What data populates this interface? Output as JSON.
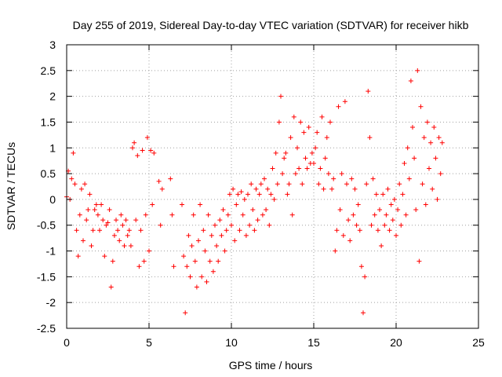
{
  "chart_data": {
    "type": "scatter",
    "title": "Day 255 of 2019, Sidereal Day-to-day VTEC variation (SDTVAR) for receiver hikb",
    "xlabel": "GPS time / hours",
    "ylabel": "SDTVAR / TECUs",
    "xlim": [
      0,
      25
    ],
    "ylim": [
      -2.5,
      3
    ],
    "xticks": [
      0,
      5,
      10,
      15,
      20,
      25
    ],
    "yticks": [
      -2.5,
      -2,
      -1.5,
      -1,
      -0.5,
      0,
      0.5,
      1,
      1.5,
      2,
      2.5,
      3
    ],
    "ytick_labels": [
      "-2.5",
      "-2",
      "-1.5",
      "-1",
      "-0.5",
      "0",
      "0.5",
      "1",
      "1.5",
      "2",
      "2.5",
      "3"
    ],
    "xtick_labels": [
      "0",
      "5",
      "10",
      "15",
      "20",
      "25"
    ],
    "grid": true,
    "marker": "+",
    "color": "#ff0000",
    "series": [
      {
        "name": "SDTVAR",
        "points": [
          [
            0.0,
            0.05
          ],
          [
            0.1,
            0.55
          ],
          [
            0.2,
            0.0
          ],
          [
            0.3,
            0.4
          ],
          [
            0.4,
            0.9
          ],
          [
            0.5,
            0.3
          ],
          [
            0.6,
            -0.6
          ],
          [
            0.7,
            -1.1
          ],
          [
            0.8,
            -0.3
          ],
          [
            0.9,
            0.2
          ],
          [
            1.0,
            -0.8
          ],
          [
            1.1,
            0.3
          ],
          [
            1.2,
            -0.4
          ],
          [
            1.3,
            -0.2
          ],
          [
            1.4,
            0.1
          ],
          [
            1.5,
            -0.9
          ],
          [
            1.6,
            -0.6
          ],
          [
            1.7,
            -0.2
          ],
          [
            1.8,
            -0.1
          ],
          [
            1.9,
            -0.3
          ],
          [
            2.0,
            -0.6
          ],
          [
            2.1,
            -0.1
          ],
          [
            2.2,
            -0.4
          ],
          [
            2.3,
            -1.1
          ],
          [
            2.4,
            -0.5
          ],
          [
            2.5,
            -0.45
          ],
          [
            2.6,
            -0.2
          ],
          [
            2.7,
            -1.7
          ],
          [
            2.8,
            -1.2
          ],
          [
            2.9,
            -0.7
          ],
          [
            3.0,
            -0.4
          ],
          [
            3.1,
            -0.6
          ],
          [
            3.2,
            -0.8
          ],
          [
            3.3,
            -0.3
          ],
          [
            3.4,
            -0.5
          ],
          [
            3.5,
            -0.9
          ],
          [
            3.6,
            -0.4
          ],
          [
            3.7,
            -0.7
          ],
          [
            3.8,
            -0.6
          ],
          [
            3.9,
            -0.9
          ],
          [
            4.0,
            1.0
          ],
          [
            4.1,
            1.1
          ],
          [
            4.2,
            -0.4
          ],
          [
            4.3,
            0.85
          ],
          [
            4.4,
            -1.3
          ],
          [
            4.5,
            -0.6
          ],
          [
            4.6,
            0.95
          ],
          [
            4.7,
            -1.2
          ],
          [
            4.8,
            -0.3
          ],
          [
            4.9,
            1.2
          ],
          [
            5.0,
            -1.0
          ],
          [
            5.1,
            0.95
          ],
          [
            5.2,
            -0.1
          ],
          [
            5.3,
            0.9
          ],
          [
            5.6,
            0.35
          ],
          [
            5.7,
            -0.5
          ],
          [
            5.8,
            0.2
          ],
          [
            6.3,
            0.4
          ],
          [
            6.4,
            -0.3
          ],
          [
            6.5,
            -1.3
          ],
          [
            7.0,
            -0.1
          ],
          [
            7.1,
            -1.1
          ],
          [
            7.2,
            -2.2
          ],
          [
            7.3,
            -1.3
          ],
          [
            7.4,
            -0.7
          ],
          [
            7.5,
            -1.5
          ],
          [
            7.6,
            -0.9
          ],
          [
            7.7,
            -0.3
          ],
          [
            7.8,
            -1.2
          ],
          [
            7.9,
            -1.7
          ],
          [
            8.0,
            -0.8
          ],
          [
            8.1,
            -0.1
          ],
          [
            8.2,
            -1.5
          ],
          [
            8.3,
            -0.6
          ],
          [
            8.4,
            -1.0
          ],
          [
            8.5,
            -1.6
          ],
          [
            8.6,
            -0.3
          ],
          [
            8.7,
            -1.2
          ],
          [
            8.8,
            -0.7
          ],
          [
            8.9,
            -1.4
          ],
          [
            9.0,
            -0.5
          ],
          [
            9.1,
            -0.9
          ],
          [
            9.2,
            -1.2
          ],
          [
            9.3,
            -0.4
          ],
          [
            9.4,
            -0.7
          ],
          [
            9.5,
            -0.2
          ],
          [
            9.6,
            -1.0
          ],
          [
            9.7,
            -0.6
          ],
          [
            9.8,
            -0.3
          ],
          [
            9.9,
            0.1
          ],
          [
            10.0,
            -0.5
          ],
          [
            10.1,
            0.2
          ],
          [
            10.2,
            -0.8
          ],
          [
            10.3,
            -0.1
          ],
          [
            10.4,
            0.1
          ],
          [
            10.5,
            -0.6
          ],
          [
            10.6,
            0.15
          ],
          [
            10.7,
            -0.3
          ],
          [
            10.8,
            0.0
          ],
          [
            10.9,
            -0.7
          ],
          [
            11.0,
            0.1
          ],
          [
            11.1,
            -0.5
          ],
          [
            11.2,
            0.3
          ],
          [
            11.3,
            -0.2
          ],
          [
            11.4,
            -0.6
          ],
          [
            11.5,
            0.2
          ],
          [
            11.6,
            -0.4
          ],
          [
            11.7,
            0.1
          ],
          [
            11.8,
            0.3
          ],
          [
            11.9,
            -0.3
          ],
          [
            12.0,
            0.4
          ],
          [
            12.1,
            -0.2
          ],
          [
            12.2,
            0.2
          ],
          [
            12.3,
            -0.5
          ],
          [
            12.4,
            0.1
          ],
          [
            12.5,
            0.6
          ],
          [
            12.6,
            0.0
          ],
          [
            12.7,
            0.9
          ],
          [
            12.8,
            0.3
          ],
          [
            12.9,
            1.5
          ],
          [
            13.0,
            2.0
          ],
          [
            13.1,
            0.5
          ],
          [
            13.2,
            0.8
          ],
          [
            13.3,
            0.9
          ],
          [
            13.4,
            0.1
          ],
          [
            13.5,
            0.3
          ],
          [
            13.6,
            1.2
          ],
          [
            13.7,
            -0.3
          ],
          [
            13.8,
            1.6
          ],
          [
            13.9,
            0.5
          ],
          [
            14.0,
            1.0
          ],
          [
            14.1,
            0.6
          ],
          [
            14.2,
            1.5
          ],
          [
            14.3,
            0.3
          ],
          [
            14.4,
            1.3
          ],
          [
            14.5,
            0.8
          ],
          [
            14.6,
            0.6
          ],
          [
            14.7,
            1.4
          ],
          [
            14.8,
            0.7
          ],
          [
            14.9,
            0.9
          ],
          [
            15.0,
            0.7
          ],
          [
            15.1,
            1.0
          ],
          [
            15.2,
            1.3
          ],
          [
            15.3,
            0.3
          ],
          [
            15.4,
            0.6
          ],
          [
            15.5,
            1.6
          ],
          [
            15.6,
            0.2
          ],
          [
            15.7,
            0.8
          ],
          [
            15.8,
            1.2
          ],
          [
            15.9,
            0.5
          ],
          [
            16.0,
            1.5
          ],
          [
            16.1,
            0.2
          ],
          [
            16.2,
            0.4
          ],
          [
            16.3,
            -1.0
          ],
          [
            16.4,
            -0.6
          ],
          [
            16.5,
            1.8
          ],
          [
            16.6,
            -0.2
          ],
          [
            16.7,
            0.5
          ],
          [
            16.8,
            -0.7
          ],
          [
            16.9,
            1.9
          ],
          [
            17.0,
            0.3
          ],
          [
            17.1,
            -0.4
          ],
          [
            17.2,
            -0.8
          ],
          [
            17.3,
            0.4
          ],
          [
            17.4,
            -0.3
          ],
          [
            17.5,
            0.2
          ],
          [
            17.6,
            -0.5
          ],
          [
            17.7,
            -0.1
          ],
          [
            17.8,
            -0.6
          ],
          [
            17.9,
            -1.3
          ],
          [
            18.0,
            -2.2
          ],
          [
            18.1,
            -1.5
          ],
          [
            18.2,
            0.3
          ],
          [
            18.3,
            2.1
          ],
          [
            18.4,
            1.2
          ],
          [
            18.5,
            -0.5
          ],
          [
            18.6,
            0.4
          ],
          [
            18.7,
            -0.3
          ],
          [
            18.8,
            0.1
          ],
          [
            18.9,
            -0.6
          ],
          [
            19.0,
            -0.2
          ],
          [
            19.1,
            -0.9
          ],
          [
            19.2,
            0.1
          ],
          [
            19.3,
            -0.5
          ],
          [
            19.4,
            -0.3
          ],
          [
            19.5,
            0.2
          ],
          [
            19.6,
            -0.6
          ],
          [
            19.7,
            -0.1
          ],
          [
            19.8,
            -0.4
          ],
          [
            19.9,
            0.0
          ],
          [
            20.0,
            -0.7
          ],
          [
            20.1,
            -0.2
          ],
          [
            20.2,
            0.3
          ],
          [
            20.3,
            -0.5
          ],
          [
            20.4,
            0.1
          ],
          [
            20.5,
            0.7
          ],
          [
            20.6,
            -0.3
          ],
          [
            20.7,
            1.0
          ],
          [
            20.8,
            0.4
          ],
          [
            20.9,
            2.3
          ],
          [
            21.0,
            1.4
          ],
          [
            21.1,
            0.8
          ],
          [
            21.2,
            -0.2
          ],
          [
            21.3,
            2.5
          ],
          [
            21.4,
            -1.2
          ],
          [
            21.5,
            1.8
          ],
          [
            21.6,
            0.3
          ],
          [
            21.7,
            1.2
          ],
          [
            21.8,
            -0.1
          ],
          [
            21.9,
            1.5
          ],
          [
            22.0,
            0.6
          ],
          [
            22.1,
            1.1
          ],
          [
            22.2,
            0.2
          ],
          [
            22.3,
            1.4
          ],
          [
            22.4,
            0.8
          ],
          [
            22.5,
            0.0
          ],
          [
            22.6,
            1.2
          ],
          [
            22.7,
            0.5
          ],
          [
            22.8,
            1.1
          ]
        ]
      }
    ]
  }
}
